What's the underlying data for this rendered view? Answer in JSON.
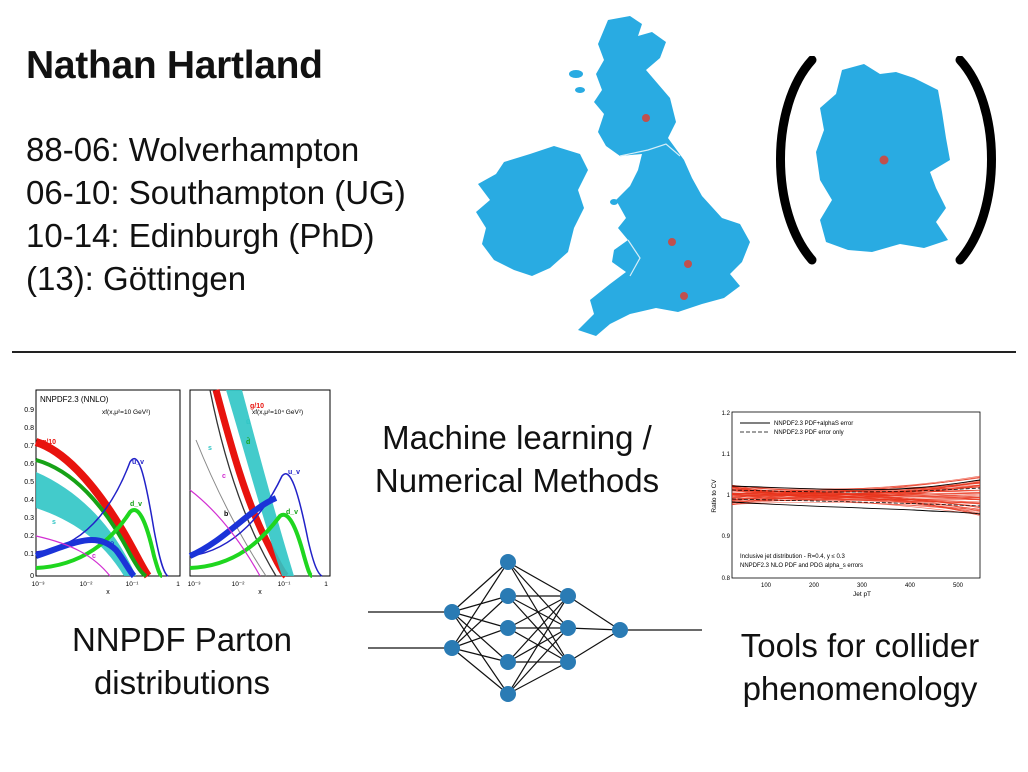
{
  "title": "Nathan Hartland",
  "timeline": [
    "88-06: Wolverhampton",
    "06-10: Southampton (UG)",
    "10-14: Edinburgh (PhD)",
    "(13): Göttingen"
  ],
  "captions": {
    "ml_line1": "Machine learning /",
    "ml_line2": "Numerical Methods",
    "nnpdf_line1": "NNPDF Parton",
    "nnpdf_line2": "distributions",
    "tools_line1": "Tools for collider",
    "tools_line2": "phenomenology"
  },
  "pdf_plot_left": {
    "title": "NNPDF2.3 (NNLO)",
    "scale_label": "xf(x,μ²=10 GeV²)",
    "xlabel": "x",
    "y_ticks": [
      "0.9",
      "0.8",
      "0.7",
      "0.6",
      "0.5",
      "0.4",
      "0.3",
      "0.2",
      "0.1",
      "0"
    ],
    "x_ticks": [
      "10⁻³",
      "10⁻²",
      "10⁻¹",
      "1"
    ],
    "curve_labels": [
      "g/10",
      "u_v",
      "d_v",
      "s",
      "c",
      "ū"
    ]
  },
  "pdf_plot_right": {
    "scale_label": "xf(x,μ²=10⁴ GeV²)",
    "xlabel": "x",
    "x_ticks": [
      "10⁻³",
      "10⁻²",
      "10⁻¹",
      "1"
    ],
    "curve_labels": [
      "g/10",
      "ū",
      "d̄",
      "s",
      "c",
      "b",
      "u_v",
      "d_v"
    ]
  },
  "ratio_plot": {
    "legend": [
      "NNPDF2.3 PDF+alphaS error",
      "NNPDF2.3 PDF error only"
    ],
    "ylabel": "Ratio to CV",
    "xlabel": "Jet pT",
    "y_ticks": [
      "1.2",
      "1.1",
      "1",
      "0.9",
      "0.8"
    ],
    "x_ticks": [
      "100",
      "200",
      "300",
      "400",
      "500"
    ],
    "note_line1": "Inclusive jet distribution - R=0.4, y ≤ 0.3",
    "note_line2": "NNPDF2.3 NLO PDF and PDG alpha_s errors"
  },
  "colors": {
    "map_fill": "#29abe2",
    "city_dot": "#c0504d",
    "network_node": "#2a7bb4",
    "ratio_band": "#e8341c"
  }
}
